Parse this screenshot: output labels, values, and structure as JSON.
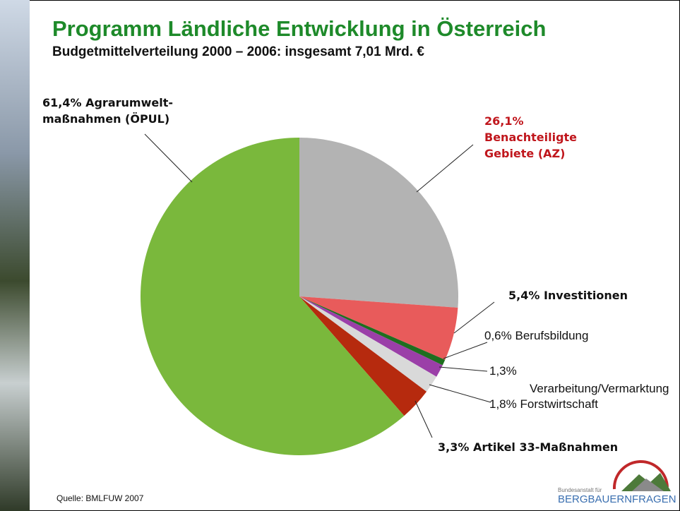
{
  "chart_data": {
    "type": "pie",
    "title": "Programm Ländliche Entwicklung in Österreich",
    "subtitle": "Budgetmittelverteilung 2000 – 2006: insgesamt 7,01 Mrd. €",
    "categories": [
      "Benachteiligte Gebiete (AZ)",
      "Investitionen",
      "Berufsbildung",
      "Verarbeitung/Vermarktung",
      "Forstwirtschaft",
      "Artikel 33-Maßnahmen",
      "Agrarumwelt-maßnahmen (ÖPUL)"
    ],
    "values": [
      26.1,
      5.4,
      0.6,
      1.3,
      1.8,
      3.3,
      61.4
    ],
    "value_labels": [
      "26,1%",
      "5,4%",
      "0,6%",
      "1,3%",
      "1,8%",
      "3,3%",
      "61,4%"
    ],
    "colors": [
      "#b3b3b3",
      "#e85b5b",
      "#1f6e1f",
      "#9b3fa8",
      "#d9d9d9",
      "#b62a0e",
      "#7ab83c"
    ],
    "source": "Quelle: BMLFUW 2007",
    "logo": {
      "top": "Bundesanstalt für",
      "bottom": "BERGBAUERNFRAGEN"
    }
  }
}
